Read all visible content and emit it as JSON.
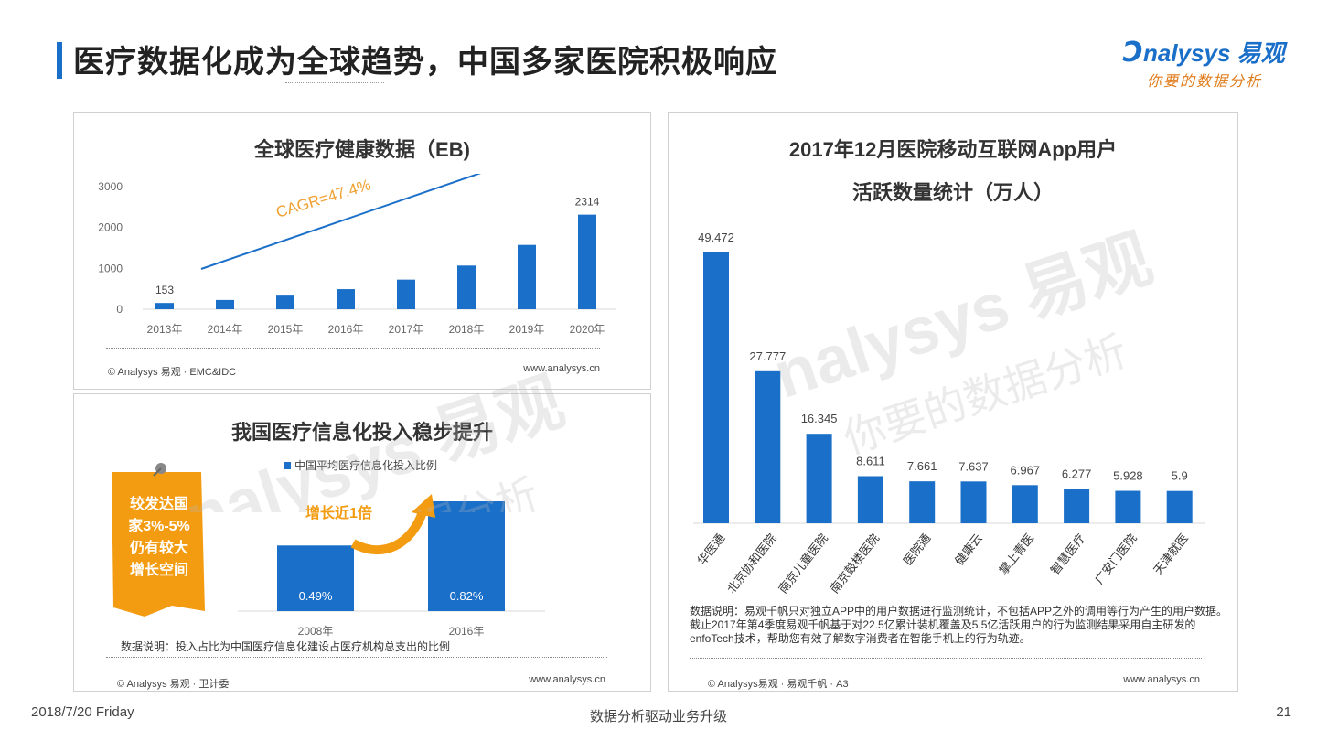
{
  "page": {
    "title": "医疗数据化成为全球趋势，中国多家医院积极响应",
    "footer_date": "2018/7/20 Friday",
    "footer_center": "数据分析驱动业务升级",
    "page_number": "21"
  },
  "logo": {
    "main": "nalysys 易观",
    "sub": "你要的数据分析"
  },
  "watermark": {
    "text": "nalysys 易观",
    "sub": "你要的数据分析"
  },
  "colors": {
    "bar": "#1a6fc9",
    "accent": "#1a6fc9",
    "orange": "#f39c12",
    "cagr": "#f0a030"
  },
  "chart1_meta": {
    "cagr_label": "CAGR=47.4%",
    "source": "© Analysys 易观 · EMC&IDC",
    "url": "www.analysys.cn"
  },
  "chart2_meta": {
    "source": "© Analysys 易观 · 卫计委",
    "url": "www.analysys.cn",
    "callout": "增长近1倍",
    "note": "数据说明：投入占比为中国医疗信息化建设占医疗机构总支出的比例",
    "sticker": [
      "较发达国",
      "家3%-5%",
      "仍有较大",
      "增长空间"
    ]
  },
  "chart3_meta": {
    "source": "© Analysys易观 · 易观千帆 · A3",
    "url": "www.analysys.cn",
    "note": "数据说明：易观千帆只对独立APP中的用户数据进行监测统计，不包括APP之外的调用等行为产生的用户数据。截止2017年第4季度易观千帆基于对22.5亿累计装机覆盖及5.5亿活跃用户的行为监测结果采用自主研发的enfoTech技术，帮助您有效了解数字消费者在智能手机上的行为轨迹。"
  },
  "chart_data": [
    {
      "type": "bar",
      "title": "全球医疗健康数据（EB)",
      "categories": [
        "2013年",
        "2014年",
        "2015年",
        "2016年",
        "2017年",
        "2018年",
        "2019年",
        "2020年"
      ],
      "values": [
        153,
        226,
        333,
        491,
        724,
        1068,
        1574,
        2314
      ],
      "data_labels": {
        "0": "153",
        "7": "2314"
      },
      "y_ticks": [
        "0",
        "1000",
        "2000",
        "3000"
      ],
      "ylim": [
        0,
        3000
      ],
      "grid": false
    },
    {
      "type": "bar",
      "title": "我国医疗信息化投入稳步提升",
      "categories": [
        "2008年",
        "2016年"
      ],
      "series": [
        {
          "name": "中国平均医疗信息化投入比例",
          "values": [
            0.49,
            0.82
          ]
        }
      ],
      "value_labels": [
        "0.49%",
        "0.82%"
      ],
      "legend": "top"
    },
    {
      "type": "bar",
      "title": "2017年12月医院移动互联网App用户活跃数量统计（万人）",
      "title_lines": [
        "2017年12月医院移动互联网App用户",
        "活跃数量统计（万人）"
      ],
      "categories": [
        "华医通",
        "北京协和医院",
        "南京儿童医院",
        "南京鼓楼医院",
        "医院通",
        "健康云",
        "掌上青医",
        "智慧医疗",
        "广安门医院",
        "天津就医"
      ],
      "values": [
        49.472,
        27.777,
        16.345,
        8.611,
        7.661,
        7.637,
        6.967,
        6.277,
        5.928,
        5.9
      ],
      "value_labels": [
        "49.472",
        "27.777",
        "16.345",
        "8.611",
        "7.661",
        "7.637",
        "6.967",
        "6.277",
        "5.928",
        "5.9"
      ]
    }
  ]
}
